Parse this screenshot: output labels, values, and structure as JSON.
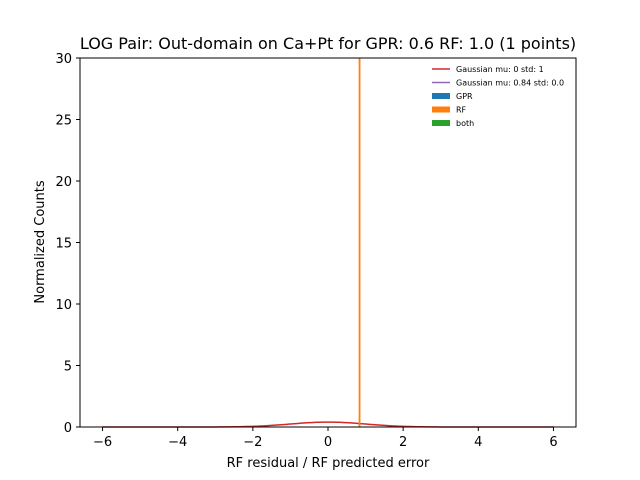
{
  "chart_data": {
    "type": "histogram",
    "title": "LOG Pair: Out-domain on Ca+Pt for GPR: 0.6 RF: 1.0 (1 points)",
    "xlabel": "RF residual / RF predicted error",
    "ylabel": "Normalized Counts",
    "xlim": [
      -6.6,
      6.6
    ],
    "ylim": [
      0,
      30
    ],
    "xticks": [
      -6,
      -4,
      -2,
      0,
      2,
      4,
      6
    ],
    "yticks": [
      0,
      5,
      10,
      15,
      20,
      25,
      30
    ],
    "grid": false,
    "legend_position": "top-right",
    "series": [
      {
        "name": "Gaussian mu: 0 std: 1",
        "kind": "line",
        "color": "#d62728",
        "mu": 0,
        "std": 1,
        "x_range": [
          -6,
          6
        ]
      },
      {
        "name": "Gaussian mu: 0.84 std: 0.0",
        "kind": "line",
        "color": "#9467bd",
        "mu": 0.84,
        "std": 0.0
      },
      {
        "name": "GPR",
        "kind": "bar",
        "color": "#1f77b4",
        "values": []
      },
      {
        "name": "RF",
        "kind": "bar",
        "color": "#ff7f0e",
        "x": 0.84,
        "height": 30
      },
      {
        "name": "both",
        "kind": "bar",
        "color": "#2ca02c",
        "values": []
      }
    ]
  }
}
